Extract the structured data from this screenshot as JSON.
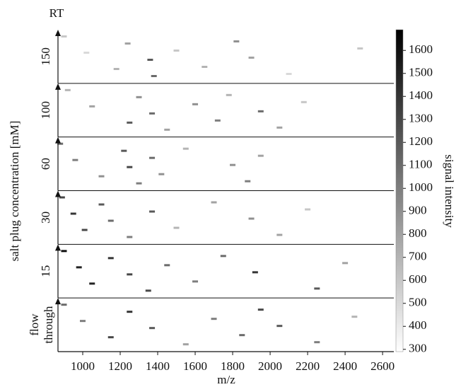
{
  "chart_data": {
    "type": "heatmap",
    "x_label": "m/z",
    "y_label": "salt plug concentration [mM]",
    "y_top_label": "RT",
    "colorbar_label": "signal intensity",
    "xlim": [
      868,
      2660
    ],
    "xticks": [
      1000,
      1200,
      1400,
      1600,
      1800,
      2000,
      2200,
      2400,
      2600
    ],
    "colorbar_lim": [
      290,
      1690
    ],
    "colorbar_ticks": [
      300,
      400,
      500,
      600,
      700,
      800,
      900,
      1000,
      1100,
      1200,
      1300,
      1400,
      1500,
      1600
    ],
    "panels": [
      {
        "label": "150",
        "spots": {
          "mz": [
            900,
            1020,
            1180,
            1240,
            1360,
            1380,
            1500,
            1650,
            1820,
            1900,
            2100,
            2480
          ],
          "intensity": [
            600,
            500,
            700,
            800,
            1200,
            1100,
            600,
            700,
            900,
            800,
            500,
            600
          ]
        }
      },
      {
        "label": "100",
        "spots": {
          "mz": [
            920,
            1050,
            1250,
            1300,
            1370,
            1450,
            1600,
            1720,
            1780,
            1950,
            2050,
            2180
          ],
          "intensity": [
            700,
            800,
            1200,
            900,
            1100,
            800,
            900,
            1000,
            700,
            1100,
            800,
            600
          ]
        }
      },
      {
        "label": "60",
        "spots": {
          "mz": [
            880,
            960,
            1100,
            1220,
            1250,
            1300,
            1370,
            1420,
            1550,
            1800,
            1880,
            1950
          ],
          "intensity": [
            1100,
            1000,
            900,
            1200,
            1300,
            1000,
            1100,
            900,
            700,
            900,
            1000,
            800
          ]
        }
      },
      {
        "label": "30",
        "spots": {
          "mz": [
            890,
            950,
            1010,
            1100,
            1150,
            1250,
            1370,
            1500,
            1700,
            1900,
            2050,
            2200
          ],
          "intensity": [
            1300,
            1400,
            1300,
            1200,
            1100,
            1000,
            1200,
            700,
            800,
            900,
            800,
            600
          ]
        }
      },
      {
        "label": "15",
        "spots": {
          "mz": [
            900,
            980,
            1050,
            1150,
            1250,
            1350,
            1450,
            1600,
            1750,
            1920,
            2250,
            2400
          ],
          "intensity": [
            1600,
            1500,
            1500,
            1400,
            1300,
            1300,
            1100,
            1000,
            1100,
            1400,
            1200,
            800
          ]
        }
      },
      {
        "label": [
          "flow",
          "through"
        ],
        "spots": {
          "mz": [
            900,
            1000,
            1150,
            1250,
            1370,
            1550,
            1700,
            1850,
            1950,
            2050,
            2250,
            2450
          ],
          "intensity": [
            1100,
            1000,
            1300,
            1400,
            1200,
            800,
            1000,
            1100,
            1300,
            1200,
            1000,
            700
          ]
        }
      }
    ]
  }
}
